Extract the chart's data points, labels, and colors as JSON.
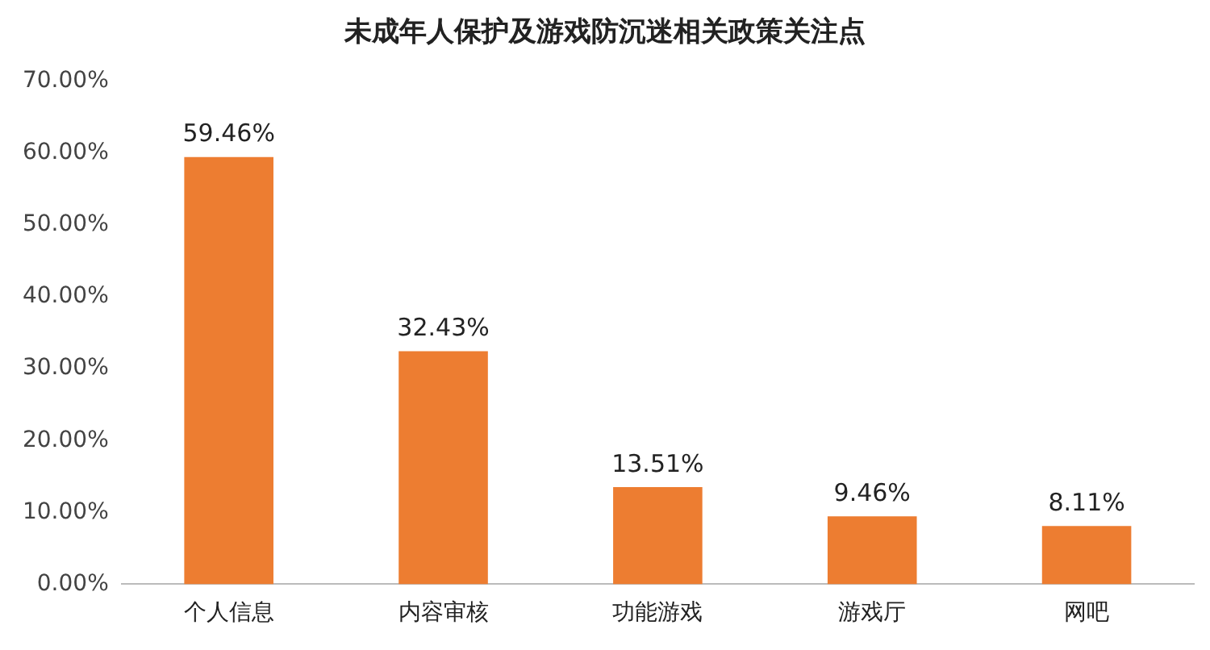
{
  "chart_data": {
    "type": "bar",
    "title": "未成年人保护及游戏防沉迷相关政策关注点",
    "categories": [
      "个人信息",
      "内容审核",
      "功能游戏",
      "游戏厅",
      "网吧"
    ],
    "values": [
      59.46,
      32.43,
      13.51,
      9.46,
      8.11
    ],
    "value_labels": [
      "59.46%",
      "32.43%",
      "13.51%",
      "9.46%",
      "8.11%"
    ],
    "color": "#ed7d31",
    "ylim": [
      0,
      70
    ],
    "yticks": [
      {
        "value": 0,
        "label": "0.00%"
      },
      {
        "value": 10,
        "label": "10.00%"
      },
      {
        "value": 20,
        "label": "20.00%"
      },
      {
        "value": 30,
        "label": "30.00%"
      },
      {
        "value": 40,
        "label": "40.00%"
      },
      {
        "value": 50,
        "label": "50.00%"
      },
      {
        "value": 60,
        "label": "60.00%"
      },
      {
        "value": 70,
        "label": "70.00%"
      }
    ],
    "grid": false,
    "legend": false
  }
}
